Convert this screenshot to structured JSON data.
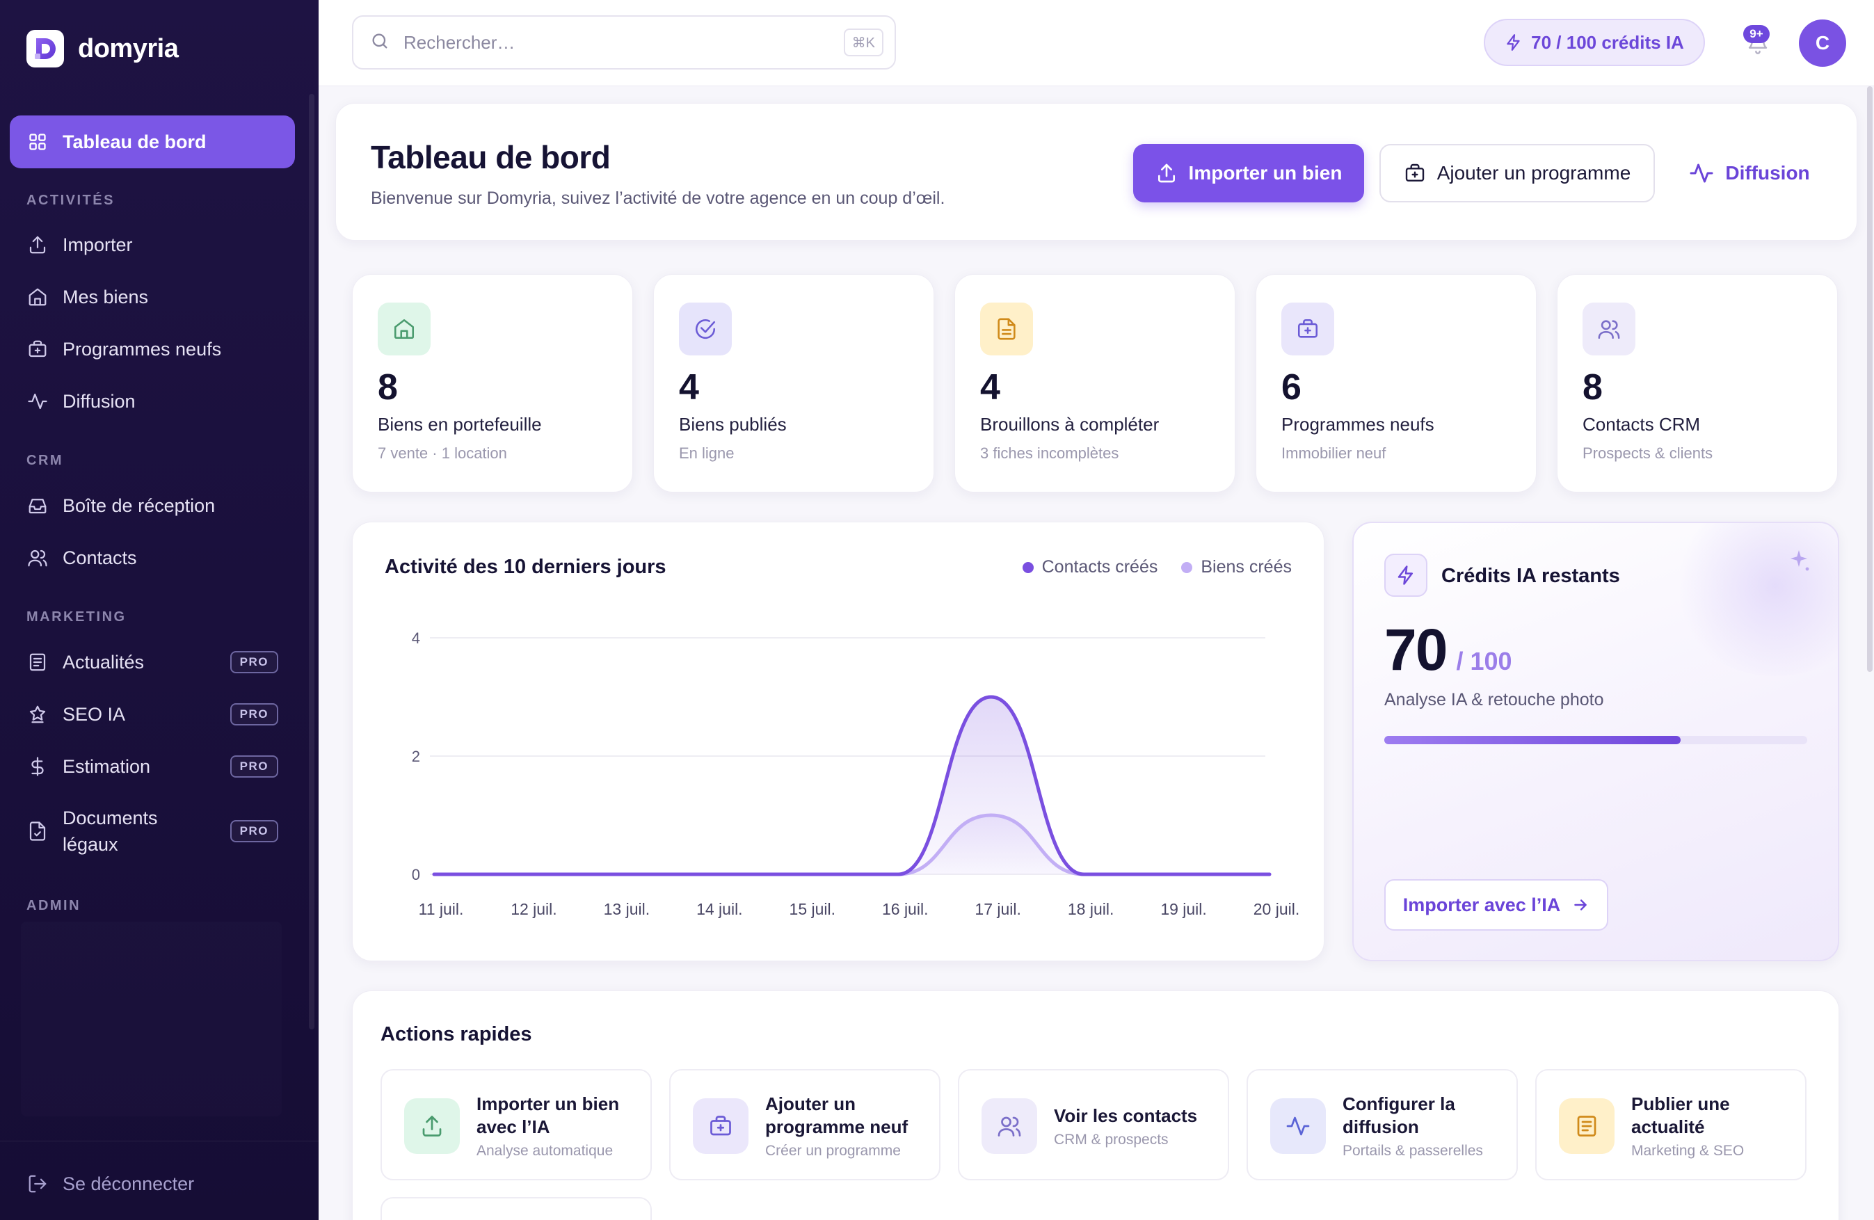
{
  "brand": {
    "name": "domyria"
  },
  "sidebar": {
    "active": {
      "label": "Tableau de bord",
      "icon": "grid-icon"
    },
    "sections": {
      "activites": "ACTIVITÉS",
      "crm": "CRM",
      "marketing": "MARKETING",
      "admin": "ADMIN"
    },
    "items": [
      {
        "label": "Importer",
        "icon": "upload-icon"
      },
      {
        "label": "Mes biens",
        "icon": "home-icon"
      },
      {
        "label": "Programmes neufs",
        "icon": "briefcase-plus-icon"
      },
      {
        "label": "Diffusion",
        "icon": "activity-icon"
      },
      {
        "label": "Boîte de réception",
        "icon": "inbox-icon"
      },
      {
        "label": "Contacts",
        "icon": "users-icon"
      },
      {
        "label": "Actualités",
        "icon": "newspaper-icon",
        "badge": "PRO"
      },
      {
        "label": "SEO IA",
        "icon": "crown-icon",
        "badge": "PRO"
      },
      {
        "label": "Estimation",
        "icon": "dollar-icon",
        "badge": "PRO"
      },
      {
        "label_line1": "Documents",
        "label_line2": "légaux",
        "icon": "file-check-icon",
        "badge": "PRO"
      }
    ],
    "logout": "Se déconnecter"
  },
  "topbar": {
    "search_placeholder": "Rechercher…",
    "search_shortcut": "⌘K",
    "credits": "70 / 100 crédits IA",
    "notifications": "9+",
    "avatar_initial": "C"
  },
  "header": {
    "title": "Tableau de bord",
    "subtitle": "Bienvenue sur Domyria, suivez l’activité de votre agence en un coup d’œil.",
    "import_button": "Importer un bien",
    "add_program_button": "Ajouter un programme",
    "diffusion_link": "Diffusion"
  },
  "stats": [
    {
      "value": "8",
      "label": "Biens en portefeuille",
      "sub": "7 vente · 1 location",
      "icon": "home-icon",
      "color": "#dff6e9",
      "icon_color": "#4a9b6e"
    },
    {
      "value": "4",
      "label": "Biens publiés",
      "sub": "En ligne",
      "icon": "check-circle-icon",
      "color": "#e6e4fb",
      "icon_color": "#6b5bd6"
    },
    {
      "value": "4",
      "label": "Brouillons à compléter",
      "sub": "3 fiches incomplètes",
      "icon": "document-icon",
      "color": "#fff0c9",
      "icon_color": "#d08a1a"
    },
    {
      "value": "6",
      "label": "Programmes neufs",
      "sub": "Immobilier neuf",
      "icon": "briefcase-plus-icon",
      "color": "#e9e6fb",
      "icon_color": "#6b5bd6"
    },
    {
      "value": "8",
      "label": "Contacts CRM",
      "sub": "Prospects & clients",
      "icon": "users-icon",
      "color": "#eeebfa",
      "icon_color": "#7b6fc9"
    }
  ],
  "chart": {
    "title": "Activité des 10 derniers jours",
    "legend": [
      "Contacts créés",
      "Biens créés"
    ]
  },
  "chart_data": {
    "type": "area",
    "x": [
      "11 juil.",
      "12 juil.",
      "13 juil.",
      "14 juil.",
      "15 juil.",
      "16 juil.",
      "17 juil.",
      "18 juil.",
      "19 juil.",
      "20 juil."
    ],
    "series": [
      {
        "name": "Contacts créés",
        "values": [
          0,
          0,
          0,
          0,
          0,
          0,
          3,
          0,
          0,
          0
        ],
        "color": "#7a4fe0"
      },
      {
        "name": "Biens créés",
        "values": [
          0,
          0,
          0,
          0,
          0,
          0,
          1,
          0,
          0,
          0
        ],
        "color": "#c2aef5"
      }
    ],
    "yticks": [
      "0",
      "2",
      "4"
    ],
    "ylim": [
      0,
      4
    ],
    "grid": true,
    "legend_position": "top-right"
  },
  "credits": {
    "title": "Crédits IA restants",
    "value": "70",
    "total": "/ 100",
    "description": "Analyse IA & retouche photo",
    "progress": 0.7,
    "button": "Importer avec l’IA"
  },
  "quick_actions": {
    "title": "Actions rapides",
    "items": [
      {
        "line1": "Importer un bien",
        "line2": "avec l’IA",
        "sub": "Analyse automatique",
        "icon": "upload-icon",
        "color": "#dff6e9",
        "icon_color": "#4a9b6e"
      },
      {
        "line1": "Ajouter un",
        "line2": "programme neuf",
        "sub": "Créer un programme",
        "icon": "briefcase-plus-icon",
        "color": "#ebe7fb",
        "icon_color": "#6b5bd6"
      },
      {
        "line1": "Voir les contacts",
        "line2": "",
        "sub": "CRM & prospects",
        "icon": "users-icon",
        "color": "#eeebfa",
        "icon_color": "#7b6fc9"
      },
      {
        "line1": "Configurer la",
        "line2": "diffusion",
        "sub": "Portails & passerelles",
        "icon": "activity-icon",
        "color": "#e7e8fb",
        "icon_color": "#5a63d6"
      },
      {
        "line1": "Publier une",
        "line2": "actualité",
        "sub": "Marketing & SEO",
        "icon": "newspaper-icon",
        "color": "#fff0c9",
        "icon_color": "#d08a1a"
      }
    ]
  }
}
